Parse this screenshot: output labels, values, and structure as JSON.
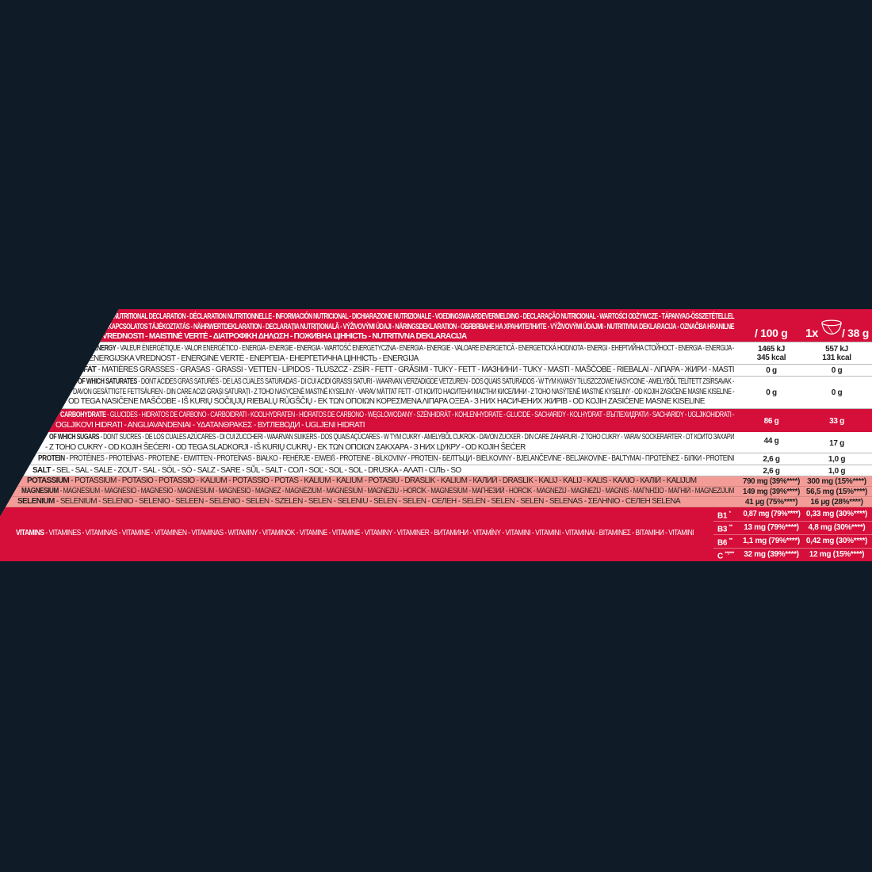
{
  "header": {
    "lines": [
      "NUTRITIONAL DECLARATION - DÉCLARATION NUTRITIONNELLE - INFORMACIÓN NUTRICIONAL - DICHIARAZIONE NUTRIZIONALE - VOEDINGSWAARDEVERMELDING - DECLARAÇÃO NUTRICIONAL - WARTOŚCI ODŻYWCZE - TÁPANYAG-ÖSSZETÉTELLEL",
      "KAPCSOLATOS TÁJÉKOZTATÁS - NÄHRWERTDEKLARATION - DECLARAȚIA NUTRIȚIONALĂ - VÝŽIVOVÝMI ÚDAJI - NÄRINGSDEKLARATION - ОБЯВЯВАНЕ НА ХРАНИТЕЛНИТЕ - VÝŽIVOVÝMI ÚDAJMI - NUTRITIVNA DEKLARACIJA - OZNAČBA HRANILNE",
      "VREDNOSTI - MAISTINĖ VERTĖ - ΔΙΑΤΡΟΦΙΚΗ ΔΗΛΩΣΗ - ПОЖИВНА ЦІННІСТЬ - NUTRITIVNA DEKLARACIJA"
    ],
    "per100_label": "/ 100 g",
    "serving_count": "1x",
    "serving_icon": "bowl-icon",
    "serving_label": "/ 38 g"
  },
  "rows": {
    "energy": {
      "label": "ENERGY",
      "lines": [
        " - VALEUR ÉNERGÉTIQUE - VALOR ENERGÉTICO - ENERGIA - ENERGIE - ENERGIA - WARTOŚĆ ENERGETYCZNA - ENERGIA - ENERGIE - VALOARE ENERGETICĂ - ENERGETICKÁ HODNOTA - ENERGI - ЕНЕРГИЙНА СТОЙНОСТ -  ENERGIA - ENERGIJA  -",
        "ENERGIJSKA VREDNOST - ENERGINĖ VERTĖ - ΕΝΕΡΓΕΙΑ - ЕНЕРГЕТИЧНА ЦІННІСТЬ - ENERGIJA"
      ],
      "per100": [
        "1465 kJ",
        "345 kcal"
      ],
      "per38": [
        "557 kJ",
        "131 kcal"
      ]
    },
    "fat": {
      "label": "FAT",
      "lines": [
        " - MATIÈRES GRASSES - GRASAS - GRASSI - VETTEN - LÍPIDOS - TŁUSZCZ - ZSÍR - FETT - GRĂSIMI - TUKY - FETT - МАЗНИНИ - TUKY - MASTI - MAŠČOBE - RIEBALAI - ΛΙΠΑΡΑ - ЖИРИ - MASTI"
      ],
      "per100": "0 g",
      "per38": "0 g"
    },
    "saturates": {
      "label": "OF WHICH SATURATES",
      "lines": [
        " - DONT ACIDES GRAS SATURÉS - DE LAS CUALES SATURADAS  - DI CUI ACIDI GRASSI SATURI - WAARVAN VERZADIGDE VETZUREN - DOS QUAIS SATURADOS - W TYM KWASY TŁUSZCZOWE NASYCONE - AMELYBŐL TELÍTETT ZSÍRSAVAK -",
        "DAVON GESÄTTIGTE FETTSÄUREN - DIN CARE ACIZI GRAȘI SATURAȚI - Z TOHO NASYCENÉ MASTNÉ KYSELINY - VARAV MÄTTAT FETT - ОТ КОИТО НАСИТЕНИ МАСТНИ КИСЕЛИНИ - Z TOHO NASÝTENÉ MASTNÉ KYSELINY  - OD KOJIH ZASIĆENE MASNE KISELINE -",
        "OD TEGA NASIČENE MAŠČOBE - IŠ KURIŲ SOČIŲJŲ RIEBALŲ RŪGŠČIŲ - ΕΚ ΤΩΝ ΟΠΟΙΩΝ ΚΟΡΕΣΜΕΝΑ ΛΙΠΑΡΑ ΟΞΕΑ - З НИХ НАСИЧЕНИХ ЖИРІВ - OD KOJIH ZASIĆENE MASNE KISELINE"
      ],
      "per100": "0 g",
      "per38": "0 g"
    },
    "carbohydrate": {
      "label": "CARBOHYDRATE",
      "lines": [
        " - GLUCIDES - HIDRATOS DE CARBONO - CARBOIDRATI - KOOLHYDRATEN - HIDRATOS DE CARBONO - WĘGLOWODANY - SZÉNHIDRÁT - KOHLENHYDRATE - GLUCIDE - SACHARIDY - KOLHYDRAT - ВЪГЛЕХИДРАТИ - SACHARIDY - UGLJIKOHIDRATI -",
        "OGLJIKOVI HIDRATI - ANGLIAVANDENIAI - ΥΔΑΤΑΝΘΡΑΚΕΣ - ВУГЛЕВОДИ - UGLJENI HIDRATI"
      ],
      "per100": "86 g",
      "per38": "33 g"
    },
    "sugars": {
      "label": "OF WHICH SUGARS",
      "lines": [
        " - DONT SUCRES - DE LOS CUALES AZÚCARES - DI CUI ZUCCHERI - WAARVAN SUIKERS - DOS QUAIS AÇÚCARES - W TYM CUKRY - AMELYBŐL CUKROK - DAVON ZUCKER - DIN CARE ZAHARURI - Z TOHO CUKRY - VARAV SOCKERARTER - ОТ КОИТО ЗАХАРИ",
        "- Z TOHO CUKRY - OD KOJIH ŠEĆERI - OD TEGA SLADKORJI - IŠ KURIŲ CUKRŲ - ΕΚ ΤΩΝ ΟΠΟΙΩΝ ΣΑΚΧΑΡΑ - З НИХ ЦУКРУ - OD KOJIH ŠEĆER"
      ],
      "per100": "44 g",
      "per38": "17 g"
    },
    "protein": {
      "label": "PROTEIN",
      "lines": [
        " - PROTÉINES - PROTEÍNAS - PROTEINE - EIWITTEN - PROTEÍNAS - BIAŁKO - FEHÉRJE - EIWEIß - PROTEINE - BÍLKOVINY - PROTEIN - БЕЛТЪЦИ - BIELKOVINY - BJELANČEVINE - BELJAKOVINE - BALTYMAI - ΠΡΩΤΕΪΝΕΣ  - БІЛКИ - PROTEINI"
      ],
      "per100": "2,6 g",
      "per38": "1,0 g"
    },
    "salt": {
      "label": "SALT",
      "lines": [
        " - SEL - SAL - SALE - ZOUT - SAL - SÓL - SÓ - SALZ - SARE - SŮL - SALT - СОЛ - SOĽ - SOL - SOL - DRUSKA  - ΑΛΑΤΙ  - СІЛЬ - SO"
      ],
      "per100": "2,6 g",
      "per38": "1,0 g"
    },
    "potassium": {
      "label": "POTASSIUM",
      "lines": [
        " - POTASSIUM - POTASIO - POTASSIO - KALIUM - POTÁSSIO - POTAS - KÁLIUM - KALIUM - POTASIU - DRASLÍK - KALIUM - КАЛИЙ - DRASLÍK - KALIJ - KALIJ - KALIS - ΚΑΛΙΟ - КАЛІЙ - KALIJUM"
      ],
      "per100": "790 mg (39%****)",
      "per38": "300 mg (15%****)"
    },
    "magnesium": {
      "label": "MAGNESIUM",
      "lines": [
        " - MAGNÉSIUM - MAGNESIO - MAGNESIO - MAGNESIUM - MAGNÉSIO - MAGNEZ - MAGNÉZIUM - MAGNESIUM - MAGNEZIU - HOŘČÍK - MAGNESIUM - МАГНЕЗИЙ - HORČÍK - MAGNEZIJ - MAGNEZIJ - MAGNIS - ΜΑΓΝΗΣΙΟ - МАГНІЙ - MAGNEZIJUM"
      ],
      "per100": "149 mg (39%****)",
      "per38": "56,5 mg (15%****)"
    },
    "selenium": {
      "label": "SELENIUM",
      "lines": [
        " - SÉLÉNIUM - SELENIO - SELENIO - SELEEN - SELÉNIO - SELEN - SZELÉN - SELEN - SELENIU - SELEN - SELEN - СЕЛЕН - SELÉN - SELEN - SELEN - SELENAS - ΣΕΛΗΝΙΟ - СЕЛЕН SELENA"
      ],
      "per100": "41 µg (75%****)",
      "per38": "16 µg (28%****)"
    },
    "vitamins": {
      "label": "VITAMINS",
      "lines": [
        " - VITAMINES - VITAMINAS - VITAMINE - VITAMINEN - VITAMINAS - WITAMINY - VITAMINOK - VITAMINE - VITAMINE - VITAMINY - VITAMINER - ВИТАМИНИ - VITAMÍNY - VITAMINI - VITAMINI - VITAMINAI - ΒΙΤΑΜΙΝΕΣ - ВІТАМІНИ - VITAMINI"
      ],
      "items": [
        {
          "name": "B1",
          "mark": "*",
          "per100": "0,87 mg (79%****)",
          "per38": "0,33 mg (30%****)"
        },
        {
          "name": "B3",
          "mark": "**",
          "per100": "13 mg (79%****)",
          "per38": "4,8 mg (30%****)"
        },
        {
          "name": "B6",
          "mark": "**",
          "per100": "1,1 mg (79%****)",
          "per38": "0,42 mg (30%****)"
        },
        {
          "name": "C",
          "mark": "**/***",
          "per100": "32 mg (39%****)",
          "per38": "12 mg (15%****)"
        }
      ]
    }
  },
  "colors": {
    "background": "#0f1c28",
    "brand_red": "#d50f3a",
    "mineral_pink": "#f39c97"
  }
}
